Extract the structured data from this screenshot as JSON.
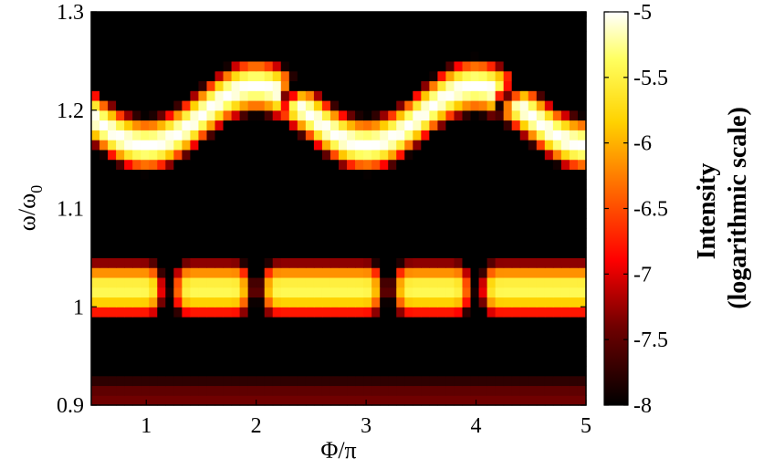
{
  "chart_data": {
    "type": "heatmap",
    "xlabel": "Φ/π",
    "ylabel": "ω/ω",
    "ylabel_subscript": "0",
    "xlim": [
      0.5,
      5
    ],
    "ylim": [
      0.9,
      1.3
    ],
    "x_ticks": [
      1,
      2,
      3,
      4,
      5
    ],
    "x_tick_labels": [
      "1",
      "2",
      "3",
      "4",
      "5"
    ],
    "y_ticks": [
      0.9,
      1,
      1.1,
      1.2,
      1.3
    ],
    "y_tick_labels": [
      "0.9",
      "1",
      "1.1",
      "1.2",
      "1.3"
    ],
    "colorscale": "hot",
    "colorbar": {
      "title_line1": "Intensity",
      "title_line2": "(logarithmic scale)",
      "range": [
        -8,
        -5
      ],
      "ticks": [
        -5,
        -5.5,
        -6,
        -6.5,
        -7,
        -7.5,
        -8
      ],
      "tick_labels": [
        "-5",
        "-5.5",
        "-6",
        "-6.5",
        "-7",
        "-7.5",
        "-8"
      ]
    },
    "grid": false,
    "x_cells": 60,
    "y_cells": 40,
    "features": {
      "upper_band": {
        "y_range": [
          1.1,
          1.28
        ],
        "peak_intensity": -5.0,
        "period_in_x": 2
      },
      "dark_gap": {
        "y": 1.065,
        "intensity": -8
      },
      "lower_band": {
        "y_range": [
          0.98,
          1.05
        ],
        "peak_intensity": -5.5,
        "dark_notches_x": [
          1.2,
          2.0,
          3.2,
          4.0
        ]
      },
      "dark_floor": {
        "y_range": [
          0.9,
          0.97
        ],
        "intensity": -8
      }
    }
  }
}
